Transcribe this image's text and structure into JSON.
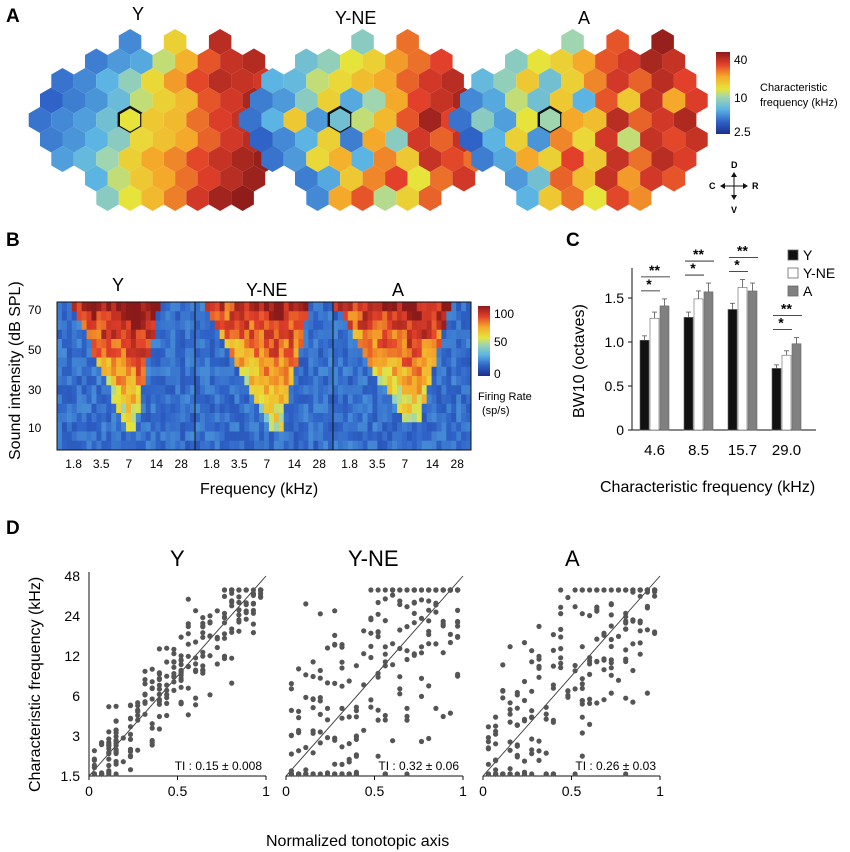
{
  "chart_data": [
    {
      "panel": "A",
      "type": "heatmap",
      "description_titles": [
        "Y",
        "Y-NE",
        "A"
      ],
      "colorbar": {
        "labels": [
          "40",
          "10",
          "2.5"
        ],
        "title_line1": "Characteristic",
        "title_line2": "frequency (kHz)",
        "min": 2.5,
        "max": 40,
        "scale": "log"
      },
      "compass": {
        "up": "D",
        "down": "V",
        "left": "C",
        "right": "R"
      },
      "maps": [
        {
          "name": "Y",
          "rows": [
            [
              null,
              null,
              null,
              null,
              0.22,
              null,
              0.6,
              null,
              0.92,
              null,
              null,
              null
            ],
            [
              null,
              null,
              0.2,
              0.25,
              0.28,
              0.5,
              0.68,
              0.82,
              0.9,
              0.93,
              null,
              null
            ],
            [
              null,
              0.18,
              0.22,
              0.3,
              0.42,
              0.58,
              0.72,
              0.84,
              0.92,
              0.9,
              0.88,
              null
            ],
            [
              0.15,
              0.2,
              0.24,
              0.33,
              0.5,
              0.6,
              0.66,
              0.82,
              0.88,
              0.95,
              0.98,
              null
            ],
            [
              0.18,
              0.22,
              0.26,
              0.35,
              0.55,
              0.62,
              0.66,
              0.78,
              0.86,
              0.9,
              0.94,
              null
            ],
            [
              0.2,
              0.24,
              0.3,
              0.4,
              0.58,
              0.64,
              0.7,
              0.8,
              0.88,
              0.92,
              0.96,
              null
            ],
            [
              null,
              0.26,
              0.32,
              0.45,
              0.6,
              0.7,
              0.75,
              0.84,
              0.9,
              0.95,
              0.98,
              null
            ],
            [
              null,
              null,
              0.3,
              0.5,
              0.62,
              0.7,
              0.78,
              0.86,
              0.92,
              0.97,
              null,
              null
            ],
            [
              null,
              null,
              null,
              0.4,
              0.55,
              0.66,
              0.76,
              0.88,
              0.96,
              0.99,
              null,
              null
            ]
          ],
          "highlight": [
            4,
            4
          ]
        },
        {
          "name": "Y-NE",
          "rows": [
            [
              null,
              null,
              null,
              null,
              null,
              0.4,
              null,
              0.78,
              null,
              null,
              null,
              null
            ],
            [
              null,
              null,
              0.35,
              0.42,
              0.55,
              0.6,
              0.72,
              0.78,
              0.85,
              null,
              null,
              null
            ],
            [
              null,
              0.3,
              0.32,
              0.5,
              0.58,
              0.65,
              0.7,
              0.8,
              0.88,
              0.92,
              null,
              null
            ],
            [
              0.2,
              0.25,
              0.4,
              0.6,
              0.28,
              0.45,
              0.7,
              0.85,
              0.9,
              0.95,
              0.9,
              null
            ],
            [
              0.18,
              0.3,
              0.62,
              0.25,
              0.35,
              0.5,
              0.66,
              0.82,
              0.96,
              0.85,
              0.92,
              null
            ],
            [
              0.15,
              0.22,
              0.3,
              0.6,
              0.2,
              0.7,
              0.4,
              0.88,
              0.8,
              0.9,
              0.86,
              null
            ],
            [
              null,
              0.18,
              0.25,
              0.58,
              0.68,
              0.3,
              0.75,
              0.62,
              0.9,
              0.84,
              0.78,
              null
            ],
            [
              null,
              null,
              0.2,
              0.28,
              0.62,
              0.75,
              0.85,
              0.55,
              0.78,
              0.88,
              null,
              null
            ],
            [
              null,
              null,
              null,
              0.22,
              0.7,
              0.82,
              0.48,
              0.6,
              0.8,
              null,
              null,
              null
            ]
          ],
          "highlight": [
            4,
            4
          ]
        },
        {
          "name": "A",
          "rows": [
            [
              null,
              null,
              null,
              null,
              null,
              0.45,
              null,
              0.82,
              null,
              0.98,
              null,
              null
            ],
            [
              null,
              null,
              0.4,
              0.55,
              0.6,
              0.7,
              0.82,
              0.88,
              0.95,
              0.9,
              null,
              null
            ],
            [
              null,
              0.32,
              0.42,
              0.62,
              0.35,
              0.6,
              0.75,
              0.88,
              0.8,
              0.92,
              0.85,
              null
            ],
            [
              0.22,
              0.28,
              0.5,
              0.35,
              0.62,
              0.3,
              0.82,
              0.62,
              0.9,
              0.7,
              0.86,
              null
            ],
            [
              0.18,
              0.4,
              0.26,
              0.55,
              0.45,
              0.7,
              0.65,
              0.92,
              0.8,
              0.88,
              0.94,
              null
            ],
            [
              0.15,
              0.3,
              0.6,
              0.24,
              0.75,
              0.58,
              0.88,
              0.5,
              0.9,
              0.84,
              0.9,
              null
            ],
            [
              null,
              0.2,
              0.28,
              0.7,
              0.6,
              0.85,
              0.62,
              0.9,
              0.78,
              0.92,
              0.86,
              null
            ],
            [
              null,
              null,
              0.25,
              0.35,
              0.8,
              0.65,
              0.9,
              0.72,
              0.88,
              0.82,
              null,
              null
            ],
            [
              null,
              null,
              null,
              0.3,
              0.62,
              0.78,
              0.55,
              0.84,
              0.74,
              null,
              null,
              null
            ]
          ],
          "highlight": [
            4,
            4
          ]
        }
      ]
    },
    {
      "panel": "B",
      "type": "heatmap",
      "titles": [
        "Y",
        "Y-NE",
        "A"
      ],
      "ylabel": "Sound intensity (dB SPL)",
      "xlabel": "Frequency (kHz)",
      "yticks": [
        "70",
        "50",
        "30",
        "10"
      ],
      "xticks": [
        "1.8",
        "3.5",
        "7",
        "14",
        "28"
      ],
      "colorbar": {
        "labels": [
          "100",
          "50",
          "0"
        ],
        "title_line1": "Firing Rate",
        "title_line2": "(sp/s)",
        "min": 0,
        "max": 100
      },
      "tuning": [
        {
          "name": "Y",
          "cf_pos": 0.55,
          "width_top": 0.55,
          "width_bottom": 0.04,
          "threshold_row": 14,
          "peak": 1.0
        },
        {
          "name": "Y-NE",
          "cf_pos": 0.6,
          "width_top": 0.7,
          "width_bottom": 0.05,
          "threshold_row": 14,
          "peak": 0.85
        },
        {
          "name": "A",
          "cf_pos": 0.6,
          "width_top": 0.75,
          "width_bottom": 0.08,
          "threshold_row": 13,
          "peak": 0.9
        }
      ]
    },
    {
      "panel": "C",
      "type": "bar",
      "categories": [
        "4.6",
        "8.5",
        "15.7",
        "29.0"
      ],
      "series": [
        {
          "name": "Y",
          "color": "#111111",
          "values": [
            1.02,
            1.28,
            1.37,
            0.7
          ],
          "errors": [
            0.05,
            0.06,
            0.07,
            0.04
          ]
        },
        {
          "name": "Y-NE",
          "color": "#ffffff",
          "values": [
            1.27,
            1.49,
            1.62,
            0.85
          ],
          "errors": [
            0.07,
            0.09,
            0.09,
            0.05
          ]
        },
        {
          "name": "A",
          "color": "#808080",
          "values": [
            1.41,
            1.57,
            1.58,
            0.98
          ],
          "errors": [
            0.08,
            0.1,
            0.09,
            0.07
          ]
        }
      ],
      "ylabel": "BW10 (octaves)",
      "xlabel": "Characteristic frequency (kHz)",
      "yticks": [
        "0",
        "0.5",
        "1.0",
        "1.5"
      ],
      "ylim": [
        0,
        1.75
      ],
      "significance": [
        {
          "single": "*",
          "double": "**"
        },
        {
          "single": "*",
          "double": "**"
        },
        {
          "single": "*",
          "double": "**"
        },
        {
          "single": "*",
          "double": "**"
        }
      ]
    },
    {
      "panel": "D",
      "type": "scatter",
      "titles": [
        "Y",
        "Y-NE",
        "A"
      ],
      "ylabel": "Characteristic frequency (kHz)",
      "xlabel": "Normalized tonotopic axis",
      "yticks": [
        "48",
        "24",
        "12",
        "6",
        "3",
        "1.5"
      ],
      "xticks": [
        "0",
        "0.5",
        "1"
      ],
      "xlim": [
        0,
        1
      ],
      "ylim_khz": [
        1.5,
        48
      ],
      "panels": [
        {
          "name": "Y",
          "ti_label": "TI : 0.15 ± 0.008",
          "spread": 0.12,
          "n": 260
        },
        {
          "name": "Y-NE",
          "ti_label": "TI : 0.32 ± 0.06",
          "spread": 0.32,
          "n": 240
        },
        {
          "name": "A",
          "ti_label": "TI : 0.26 ± 0.03",
          "spread": 0.27,
          "n": 240
        }
      ]
    }
  ],
  "panel_letters": [
    "A",
    "B",
    "C",
    "D"
  ]
}
